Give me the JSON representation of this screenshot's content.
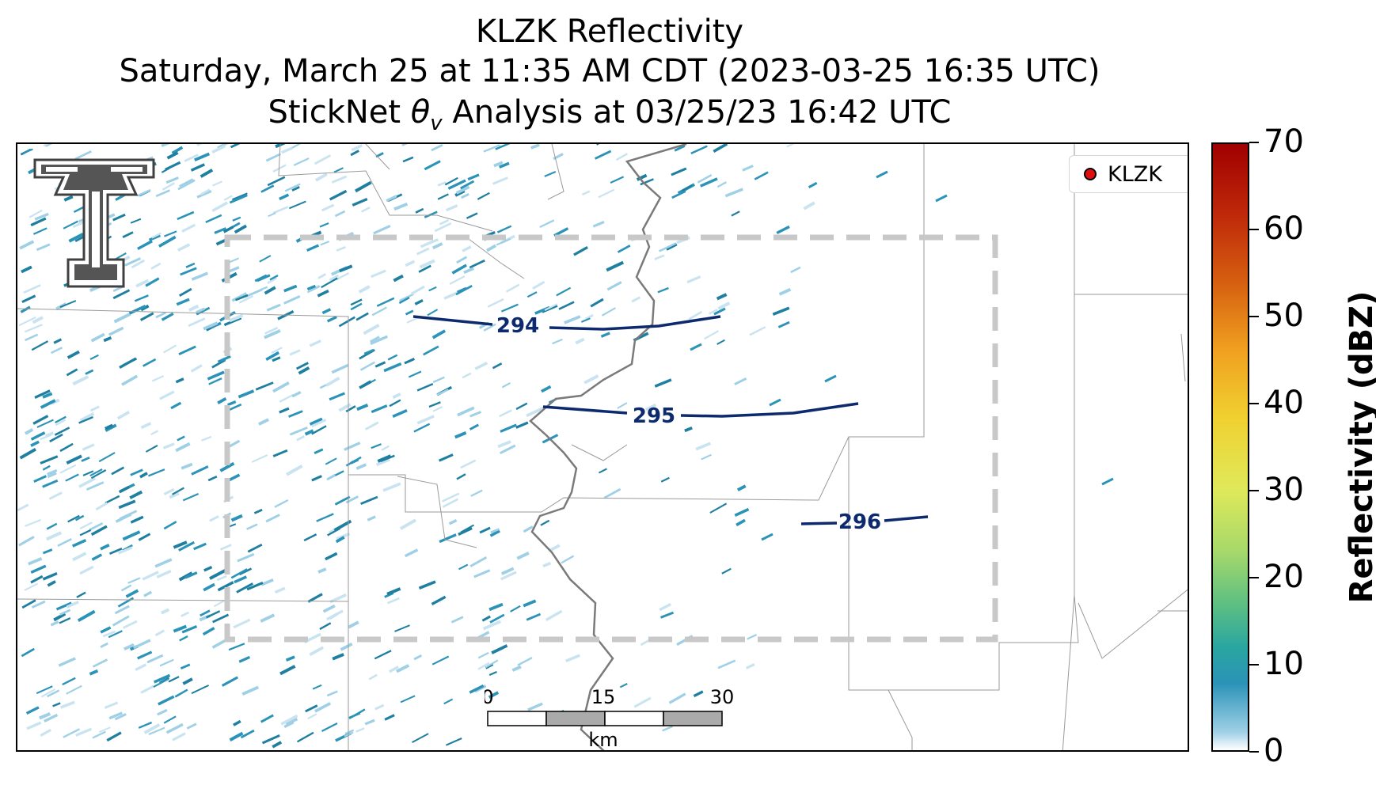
{
  "title": {
    "line1": "KLZK Reflectivity",
    "line2": "Saturday, March 25 at 11:35 AM CDT (2023-03-25 16:35 UTC)",
    "line3_prefix": "StickNet ",
    "line3_var": "θ",
    "line3_sub": "v",
    "line3_suffix": " Analysis at 03/25/23 16:42 UTC"
  },
  "legend": {
    "label": "KLZK",
    "marker_color": "#e01010"
  },
  "contours": [
    {
      "label": "294",
      "color": "#0d2a6e"
    },
    {
      "label": "295",
      "color": "#0d2a6e"
    },
    {
      "label": "296",
      "color": "#0d2a6e"
    }
  ],
  "scalebar": {
    "labels": [
      "0",
      "15",
      "30"
    ],
    "unit": "km"
  },
  "colorbar": {
    "label": "Reflectivity (dBZ)",
    "ticks": [
      "0",
      "10",
      "20",
      "30",
      "40",
      "50",
      "60",
      "70"
    ],
    "min": 0,
    "max": 70
  },
  "colors": {
    "echo_light": "#9fd0e6",
    "echo_mid": "#2b93b8",
    "echo_dark": "#1f7fa0",
    "domain_box": "#c8c8c8",
    "river": "#7a7a7a"
  },
  "logo": {
    "name": "texas-tech-double-t-logo"
  }
}
